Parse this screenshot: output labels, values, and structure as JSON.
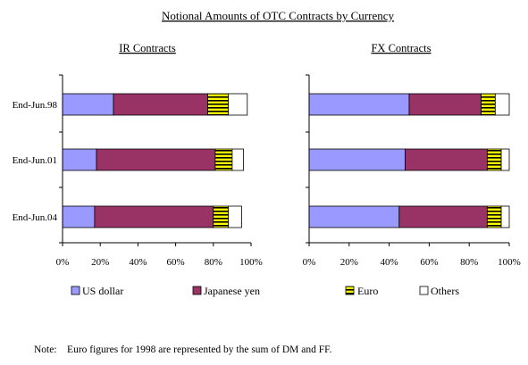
{
  "title": "Notional Amounts of OTC Contracts by Currency",
  "note": "Note:    Euro figures for 1998 are represented by the sum of DM and FF.",
  "colors": {
    "us_dollar": "#9999ff",
    "japanese_yen": "#993366",
    "euro": "#ffff00",
    "euro_stripe": "#000000",
    "others": "#ffffff",
    "axis": "#000000"
  },
  "chart_data": [
    {
      "type": "bar",
      "orientation": "horizontal",
      "stacked": true,
      "percent": true,
      "title": "IR Contracts",
      "categories": [
        "End-Jun.98",
        "End-Jun.01",
        "End-Jun.04"
      ],
      "xlim": [
        0,
        100
      ],
      "x_ticks": [
        "0%",
        "20%",
        "40%",
        "60%",
        "80%",
        "100%"
      ],
      "grid": false,
      "series": [
        {
          "name": "US dollar",
          "values": [
            27,
            18,
            17
          ]
        },
        {
          "name": "Japanese yen",
          "values": [
            50,
            63,
            63
          ]
        },
        {
          "name": "Euro",
          "values": [
            11,
            9,
            8
          ]
        },
        {
          "name": "Others",
          "values": [
            10,
            6,
            7
          ]
        }
      ]
    },
    {
      "type": "bar",
      "orientation": "horizontal",
      "stacked": true,
      "percent": true,
      "title": "FX Contracts",
      "categories": [
        "End-Jun.98",
        "End-Jun.01",
        "End-Jun.04"
      ],
      "xlim": [
        0,
        100
      ],
      "x_ticks": [
        "0%",
        "20%",
        "40%",
        "60%",
        "80%",
        "100%"
      ],
      "grid": false,
      "series": [
        {
          "name": "US dollar",
          "values": [
            50,
            48,
            45
          ]
        },
        {
          "name": "Japanese yen",
          "values": [
            36,
            41,
            44
          ]
        },
        {
          "name": "Euro",
          "values": [
            7,
            7,
            7
          ]
        },
        {
          "name": "Others",
          "values": [
            7,
            4,
            4
          ]
        }
      ]
    }
  ],
  "legend": {
    "placement": "bottom",
    "items": [
      {
        "label": "US dollar",
        "key": "us_dollar"
      },
      {
        "label": "Japanese yen",
        "key": "japanese_yen"
      },
      {
        "label": "Euro",
        "key": "euro"
      },
      {
        "label": "Others",
        "key": "others"
      }
    ]
  }
}
